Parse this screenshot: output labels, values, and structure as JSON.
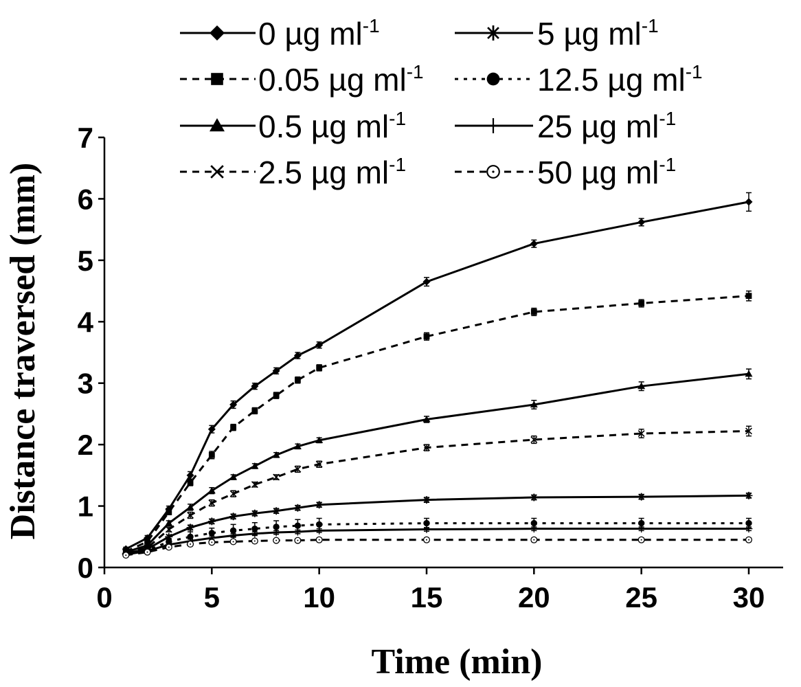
{
  "chart_data": {
    "type": "line",
    "xlabel": "Time (min)",
    "ylabel": "Distance traversed (mm)",
    "xlim": [
      0,
      31.6
    ],
    "ylim": [
      0,
      7
    ],
    "xticks": [
      "0",
      "5",
      "10",
      "15",
      "20",
      "25",
      "30"
    ],
    "yticks": [
      "0",
      "1",
      "2",
      "3",
      "4",
      "5",
      "6",
      "7"
    ],
    "grid": false,
    "legend_position": "top",
    "color": "#000000",
    "x": [
      1,
      2,
      3,
      4,
      5,
      6,
      7,
      8,
      9,
      10,
      15,
      20,
      25,
      30
    ],
    "series": [
      {
        "name": "0 µg ml",
        "name_sup": "-1",
        "line_style": "solid",
        "marker": "diamond",
        "values": [
          0.3,
          0.48,
          0.95,
          1.5,
          2.25,
          2.65,
          2.95,
          3.2,
          3.45,
          3.62,
          4.65,
          5.27,
          5.62,
          5.95
        ],
        "errors": [
          0.03,
          0.04,
          0.05,
          0.06,
          0.06,
          0.06,
          0.05,
          0.05,
          0.05,
          0.05,
          0.07,
          0.06,
          0.06,
          0.15
        ]
      },
      {
        "name": "0.05 µg ml",
        "name_sup": "-1",
        "line_style": "dashed",
        "marker": "square",
        "values": [
          0.26,
          0.42,
          0.9,
          1.38,
          1.83,
          2.28,
          2.55,
          2.8,
          3.05,
          3.25,
          3.76,
          4.16,
          4.3,
          4.42
        ],
        "errors": [
          0.03,
          0.03,
          0.04,
          0.05,
          0.06,
          0.05,
          0.05,
          0.05,
          0.05,
          0.05,
          0.06,
          0.06,
          0.06,
          0.08
        ]
      },
      {
        "name": "0.5 µg ml",
        "name_sup": "-1",
        "line_style": "solid",
        "marker": "triangle",
        "values": [
          0.25,
          0.36,
          0.72,
          0.98,
          1.25,
          1.47,
          1.65,
          1.83,
          1.97,
          2.07,
          2.41,
          2.65,
          2.95,
          3.15
        ],
        "errors": [
          0.02,
          0.03,
          0.04,
          0.05,
          0.05,
          0.04,
          0.04,
          0.04,
          0.04,
          0.04,
          0.05,
          0.07,
          0.07,
          0.08
        ]
      },
      {
        "name": "2.5 µg ml",
        "name_sup": "-1",
        "line_style": "dashed",
        "marker": "x",
        "values": [
          0.24,
          0.32,
          0.62,
          0.85,
          1.05,
          1.2,
          1.35,
          1.47,
          1.6,
          1.68,
          1.95,
          2.08,
          2.18,
          2.22
        ],
        "errors": [
          0.02,
          0.03,
          0.04,
          0.05,
          0.05,
          0.05,
          0.04,
          0.04,
          0.05,
          0.05,
          0.05,
          0.06,
          0.07,
          0.08
        ]
      },
      {
        "name": "5 µg ml",
        "name_sup": "-1",
        "line_style": "solid",
        "marker": "asterisk",
        "values": [
          0.23,
          0.3,
          0.5,
          0.65,
          0.75,
          0.83,
          0.88,
          0.92,
          0.97,
          1.02,
          1.1,
          1.14,
          1.15,
          1.17
        ],
        "errors": [
          0.02,
          0.02,
          0.03,
          0.04,
          0.04,
          0.04,
          0.04,
          0.04,
          0.04,
          0.04,
          0.04,
          0.04,
          0.04,
          0.04
        ]
      },
      {
        "name": "12.5 µg ml",
        "name_sup": "-1",
        "line_style": "dotted",
        "marker": "circle",
        "values": [
          0.22,
          0.28,
          0.42,
          0.5,
          0.56,
          0.6,
          0.63,
          0.66,
          0.68,
          0.7,
          0.72,
          0.72,
          0.72,
          0.72
        ],
        "errors": [
          0.02,
          0.02,
          0.03,
          0.08,
          0.08,
          0.1,
          0.1,
          0.1,
          0.1,
          0.1,
          0.08,
          0.08,
          0.08,
          0.08
        ]
      },
      {
        "name": "25 µg ml",
        "name_sup": "-1",
        "line_style": "solid",
        "marker": "plus",
        "values": [
          0.21,
          0.27,
          0.37,
          0.43,
          0.48,
          0.52,
          0.55,
          0.57,
          0.58,
          0.6,
          0.62,
          0.63,
          0.63,
          0.63
        ],
        "errors": [
          0.02,
          0.02,
          0.02,
          0.03,
          0.03,
          0.03,
          0.03,
          0.03,
          0.03,
          0.03,
          0.03,
          0.03,
          0.03,
          0.03
        ]
      },
      {
        "name": "50 µg ml",
        "name_sup": "-1",
        "line_style": "dashed",
        "marker": "circle-open",
        "values": [
          0.2,
          0.25,
          0.33,
          0.38,
          0.41,
          0.42,
          0.43,
          0.44,
          0.44,
          0.45,
          0.45,
          0.45,
          0.45,
          0.45
        ],
        "errors": [
          0.02,
          0.02,
          0.02,
          0.02,
          0.02,
          0.02,
          0.02,
          0.02,
          0.03,
          0.03,
          0.03,
          0.03,
          0.03,
          0.03
        ]
      }
    ]
  }
}
